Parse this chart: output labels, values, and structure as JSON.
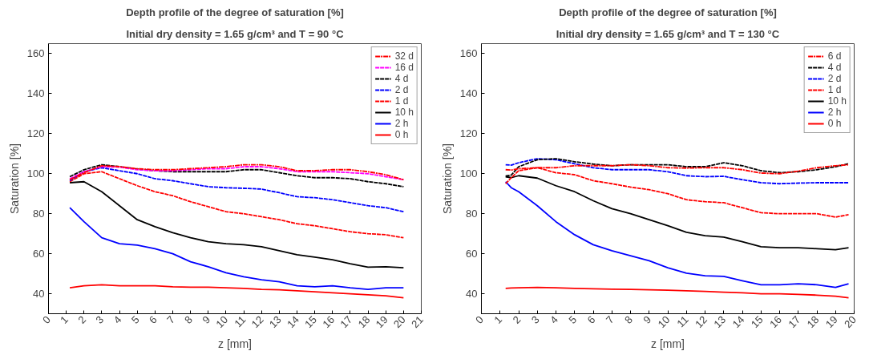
{
  "chart_data": [
    {
      "type": "line",
      "title": "Depth profile of the degree of saturation [%]",
      "subtitle": "Initial dry density = 1.65 g/cm³ and T = 90 °C",
      "xlabel": "z [mm]",
      "ylabel": "Saturation [%]",
      "xlim": [
        0,
        21
      ],
      "ylim": [
        30,
        165
      ],
      "xticks": [
        0,
        1,
        2,
        3,
        4,
        5,
        6,
        7,
        8,
        9,
        10,
        11,
        12,
        13,
        14,
        15,
        16,
        17,
        18,
        19,
        20,
        21
      ],
      "yticks": [
        40,
        60,
        80,
        100,
        120,
        140,
        160
      ],
      "grid": false,
      "legend": "top right",
      "x": [
        1.2,
        2,
        3,
        4,
        5,
        6,
        7,
        8,
        9,
        10,
        11,
        12,
        13,
        14,
        15,
        16,
        17,
        18,
        19,
        20
      ],
      "series": [
        {
          "name": "32 d",
          "color": "#ff0000",
          "line_style": "dashdot",
          "values": [
            97,
            100.5,
            104,
            103.5,
            102.5,
            102,
            102,
            102.5,
            103,
            103.5,
            104.5,
            104.5,
            103.5,
            101.5,
            101.5,
            102,
            102,
            101,
            99.5,
            97
          ]
        },
        {
          "name": "16 d",
          "color": "#ff00ff",
          "line_style": "dashed",
          "values": [
            97.5,
            101,
            103.5,
            103.3,
            102,
            101.5,
            101.5,
            102,
            102.5,
            102.5,
            103.5,
            103.5,
            102.5,
            101,
            101,
            101,
            100.5,
            100,
            98.5,
            97
          ]
        },
        {
          "name": "4 d",
          "color": "#000000",
          "line_style": "dashed",
          "values": [
            98.5,
            102,
            104.5,
            103.5,
            102.3,
            101.5,
            101,
            101,
            101,
            101,
            102,
            102,
            100.5,
            99,
            98,
            98,
            97.5,
            96,
            95,
            93.5
          ]
        },
        {
          "name": "2 d",
          "color": "#0000ff",
          "line_style": "dashed",
          "values": [
            96.5,
            101,
            103,
            101.5,
            100,
            97.5,
            96.5,
            95,
            93.5,
            93,
            92.7,
            92.3,
            90.5,
            88.5,
            88,
            87,
            85.5,
            84,
            83,
            81
          ]
        },
        {
          "name": "1 d",
          "color": "#ff0000",
          "line_style": "dashed",
          "values": [
            96,
            100,
            101,
            97.5,
            94,
            91,
            89,
            86,
            83.5,
            81,
            80,
            78.5,
            77,
            75,
            74,
            72.5,
            71,
            70,
            69.5,
            68
          ]
        },
        {
          "name": "10 h",
          "color": "#000000",
          "line_style": "solid",
          "values": [
            95.5,
            96,
            91,
            84,
            77,
            73.5,
            70.5,
            68,
            66,
            65,
            64.5,
            63.5,
            61.5,
            59.5,
            58.3,
            57,
            55,
            53.3,
            53.5,
            53
          ]
        },
        {
          "name": "2 h",
          "color": "#0000ff",
          "line_style": "solid",
          "values": [
            83,
            76,
            68,
            65,
            64.3,
            62.5,
            60,
            56,
            53.5,
            50.5,
            48.5,
            47,
            46,
            44,
            43.5,
            44,
            43,
            42.2,
            43,
            43
          ]
        },
        {
          "name": "0 h",
          "color": "#ff0000",
          "line_style": "solid",
          "values": [
            43,
            44,
            44.5,
            44,
            44,
            44,
            43.5,
            43.3,
            43.3,
            43,
            42.7,
            42.2,
            42,
            41.5,
            41,
            40.5,
            40,
            39.5,
            39,
            38
          ]
        }
      ]
    },
    {
      "type": "line",
      "title": "Depth profile of the degree of saturation [%]",
      "subtitle": "Initial dry density = 1.65 g/cm³ and T = 130 °C",
      "xlabel": "z [mm]",
      "ylabel": "Saturation [%]",
      "xlim": [
        0,
        20
      ],
      "ylim": [
        30,
        165
      ],
      "xticks": [
        0,
        1,
        2,
        3,
        4,
        5,
        6,
        7,
        8,
        9,
        10,
        11,
        12,
        13,
        14,
        15,
        16,
        17,
        18,
        19,
        20
      ],
      "yticks": [
        40,
        60,
        80,
        100,
        120,
        140,
        160
      ],
      "grid": false,
      "legend": "top right",
      "x": [
        1.3,
        1.6,
        2,
        3,
        4,
        5,
        6,
        7,
        8,
        9,
        10,
        11,
        12,
        13,
        14,
        15,
        16,
        17,
        18,
        19,
        19.7
      ],
      "series": [
        {
          "name": "6 d",
          "color": "#ff0000",
          "line_style": "dashdot",
          "values": [
            102,
            101.8,
            102.5,
            103,
            103,
            104,
            104,
            104,
            104.5,
            104,
            103,
            102.8,
            103,
            103,
            102,
            100.3,
            100,
            101.3,
            103,
            104,
            104.5
          ]
        },
        {
          "name": "4 d",
          "color": "#000000",
          "line_style": "dashed",
          "values": [
            98.8,
            99.3,
            103.5,
            107,
            107.5,
            106,
            104.8,
            104,
            104.5,
            104.5,
            104.5,
            103.5,
            103.5,
            105.5,
            104,
            101.5,
            100.5,
            101,
            102,
            103.5,
            105
          ]
        },
        {
          "name": "2 d",
          "color": "#0000ff",
          "line_style": "dashed",
          "values": [
            104.5,
            104.3,
            105.5,
            107.5,
            107,
            105,
            103,
            102,
            102,
            102,
            101,
            99,
            98.5,
            98.7,
            97,
            95.5,
            95,
            95.3,
            95.5,
            95.5,
            95.5
          ]
        },
        {
          "name": "1 d",
          "color": "#ff0000",
          "line_style": "dashed",
          "values": [
            95,
            98,
            101.5,
            103,
            100.5,
            99.5,
            96.5,
            95,
            93.3,
            92,
            90,
            87,
            86,
            85.5,
            83,
            80.5,
            80,
            80,
            80,
            78.3,
            79.5
          ]
        },
        {
          "name": "10 h",
          "color": "#000000",
          "line_style": "solid",
          "values": [
            98.5,
            98,
            99,
            97.8,
            94,
            91,
            86.5,
            82.5,
            80,
            77,
            74,
            70.7,
            69,
            68.3,
            66,
            63.5,
            63,
            63,
            62.5,
            62,
            63
          ]
        },
        {
          "name": "2 h",
          "color": "#0000ff",
          "line_style": "solid",
          "values": [
            96,
            93,
            91,
            84,
            76,
            69.5,
            64.5,
            61.5,
            59,
            56.5,
            53,
            50.3,
            49,
            48.7,
            46.5,
            44.5,
            44.5,
            45,
            44.5,
            43.2,
            45
          ]
        },
        {
          "name": "0 h",
          "color": "#ff0000",
          "line_style": "solid",
          "values": [
            42.7,
            42.9,
            43,
            43.2,
            43,
            42.7,
            42.5,
            42.3,
            42.2,
            42,
            41.8,
            41.5,
            41.2,
            40.8,
            40.5,
            40,
            40,
            39.7,
            39.3,
            38.8,
            38
          ]
        }
      ]
    }
  ]
}
